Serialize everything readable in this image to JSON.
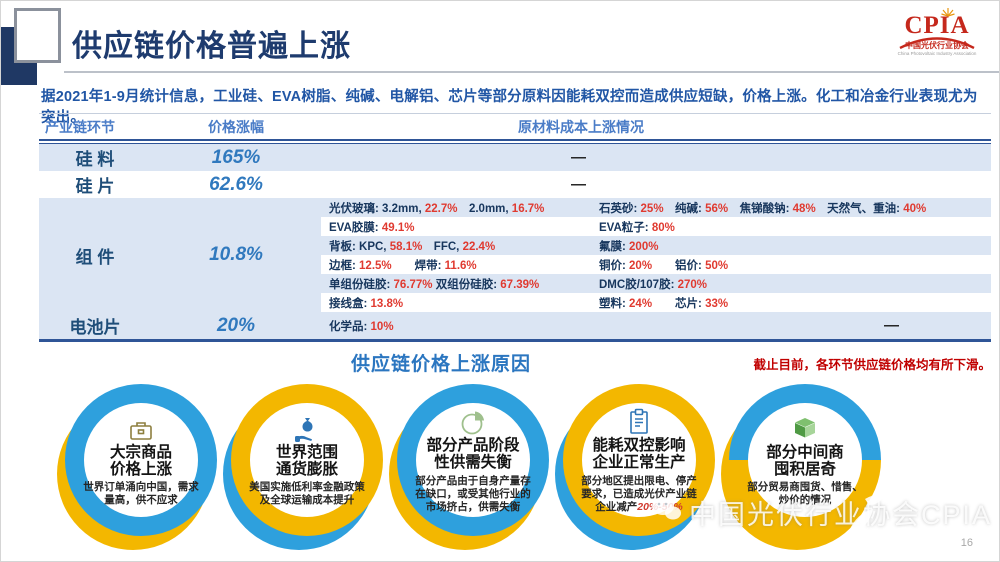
{
  "header": {
    "title": "供应链价格普遍上涨",
    "logo": {
      "name": "CPIA",
      "org": "中国光伏行业协会",
      "sub": "China Photovoltaic Industry Association"
    }
  },
  "intro": "据2021年1-9月统计信息，工业硅、EVA树脂、纯碱、电解铝、芯片等部分原料因能耗双控而造成供应短缺，价格上涨。化工和冶金行业表现尤为突出。",
  "table": {
    "headers": [
      "产业链环节",
      "价格涨幅",
      "原材料成本上涨情况"
    ],
    "dash": "—",
    "rows": {
      "silicon": {
        "label": "硅  料",
        "value": "165%"
      },
      "wafer": {
        "label": "硅  片",
        "value": "62.6%"
      }
    },
    "module_row": {
      "label": "组  件",
      "value": "10.8%",
      "lines": [
        {
          "left": [
            "光伏玻璃: 3.2mm, ",
            "22.7%",
            "　2.0mm, ",
            "16.7%"
          ],
          "right": [
            "石英砂: ",
            "25%",
            "　纯碱: ",
            "56%",
            "　焦锑酸钠: ",
            "48%",
            "　天然气、重油: ",
            "40%"
          ]
        },
        {
          "left": [
            "EVA胶膜: ",
            "49.1%"
          ],
          "right": [
            "EVA粒子: ",
            "80%"
          ]
        },
        {
          "left": [
            "背板: KPC, ",
            "58.1%",
            "　FFC, ",
            "22.4%"
          ],
          "right": [
            "氟膜: ",
            "200%"
          ]
        },
        {
          "left": [
            "边框: ",
            "12.5%",
            "　　焊带: ",
            "11.6%"
          ],
          "right": [
            "铜价: ",
            "20%",
            "　　铝价: ",
            "50%"
          ]
        },
        {
          "left": [
            "单组份硅胶: ",
            "76.77%",
            " 双组份硅胶: ",
            "67.39%"
          ],
          "right": [
            "DMC胶/107胶: ",
            "270%"
          ]
        },
        {
          "left": [
            "接线盒: ",
            "13.8%"
          ],
          "right": [
            "塑料: ",
            "24%",
            "　　芯片: ",
            "33%"
          ]
        }
      ]
    },
    "cell_row": {
      "label": "电池片",
      "value": "20%",
      "detail": [
        "化学品: ",
        "10%"
      ]
    }
  },
  "reasons": {
    "title": "供应链价格上涨原因",
    "note": "截止目前，各环节供应链价格均有所下滑。",
    "circles": [
      {
        "title1": "大宗商品",
        "title2": "价格上涨",
        "desc": "世界订单涌向中国，需求量高，供不应求"
      },
      {
        "title1": "世界范围",
        "title2": "通货膨胀",
        "desc": "美国实施低利率金融政策及全球运输成本提升"
      },
      {
        "title1": "部分产品阶段",
        "title2": "性供需失衡",
        "desc": "部分产品由于自身产量存在缺口，或受其他行业的市场挤占，供需失衡"
      },
      {
        "title1": "能耗双控影响",
        "title2": "企业正常生产",
        "desc": "部分地区提出限电、停产要求，已造成光伏产业链企业减产",
        "desc_highlight": "20%-50%"
      },
      {
        "title1": "部分中间商",
        "title2": "囤积居奇",
        "desc": "部分贸易商囤货、惜售、炒价的情况"
      }
    ]
  },
  "watermark": {
    "text": "中国光伏行业协会CPIA"
  },
  "page_number": "16",
  "colors": {
    "title_navy": "#1e3b6e",
    "intro_blue": "#2156a5",
    "header_blue": "#4a7cc7",
    "row_stripe": "#dbe5f3",
    "table_rule": "#2f5597",
    "value_blue": "#3079be",
    "detail_dark": "#17365d",
    "detail_red": "#e03a30",
    "note_red": "#c00000",
    "ring_blue": "#2ea0dd",
    "ring_yellow": "#f3b700",
    "logo_red": "#c5281c"
  }
}
